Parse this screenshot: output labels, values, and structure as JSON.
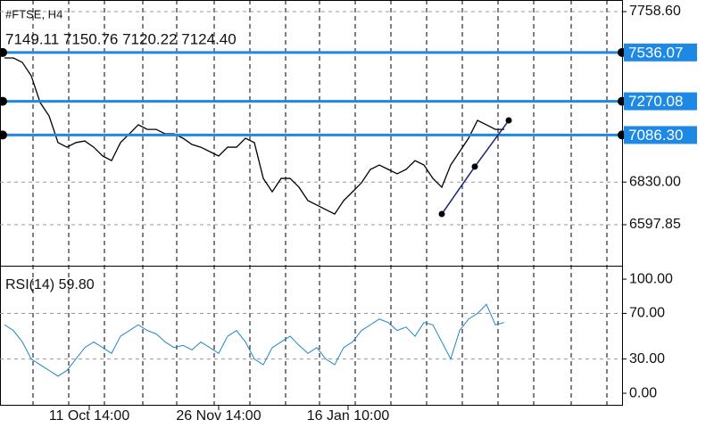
{
  "chart_data": {
    "type": "price",
    "symbol": "#FTSE, H4",
    "ohlc_text": "7149.11 7150.76 7120.22 7124.40",
    "close": [
      7506,
      7506,
      7482,
      7409,
      7263,
      7190,
      7045,
      7020,
      7045,
      7054,
      7020,
      6972,
      6947,
      7045,
      7093,
      7142,
      7117,
      7117,
      7093,
      7093,
      7069,
      7035,
      7020,
      6996,
      6972,
      7020,
      7020,
      7069,
      7045,
      6850,
      6777,
      6850,
      6850,
      6802,
      6729,
      6705,
      6680,
      6656,
      6729,
      6777,
      6826,
      6899,
      6923,
      6899,
      6875,
      6899,
      6947,
      6923,
      6850,
      6802,
      6923,
      6996,
      7069,
      7166,
      7142,
      7117,
      7117
    ],
    "xlim": [
      -0.5,
      69.2
    ],
    "xticks": [
      {
        "value": 9.5,
        "label": "11 Oct 14:00"
      },
      {
        "value": 24,
        "label": "26 Nov 14:00"
      },
      {
        "value": 38.5,
        "label": "16 Jan 10:00"
      }
    ],
    "ylim": [
      6379.3,
      7821.7
    ],
    "yticks": [
      {
        "value": 7758.6,
        "label": "7758.60"
      },
      {
        "value": 6830,
        "label": "6830.00"
      },
      {
        "value": 6597.85,
        "label": "6597.85"
      }
    ],
    "levels": [
      {
        "value": 7536.07,
        "label": "7536.07"
      },
      {
        "value": 7270.08,
        "label": "7270.08"
      },
      {
        "value": 7086.3,
        "label": "7086.30"
      }
    ],
    "level_color": "#1e88e5",
    "trendline": {
      "x": [
        49,
        52.7,
        56.5
      ],
      "y": [
        6656,
        6914,
        7166
      ],
      "color": "#1a237e"
    },
    "rsi": {
      "label": "RSI(14) 59.80",
      "color": "#1e88c8",
      "values": [
        60,
        55,
        45,
        30,
        25,
        20,
        15,
        20,
        30,
        40,
        45,
        40,
        35,
        50,
        55,
        60,
        55,
        52,
        45,
        40,
        42,
        38,
        45,
        40,
        35,
        50,
        55,
        45,
        30,
        25,
        40,
        45,
        50,
        42,
        35,
        40,
        30,
        25,
        40,
        45,
        55,
        60,
        65,
        62,
        55,
        58,
        50,
        62,
        60,
        45,
        30,
        55,
        65,
        70,
        78,
        60,
        62
      ],
      "ylim": [
        -10.9,
        110.2
      ],
      "yticks": [
        {
          "value": 100,
          "label": "100.00"
        },
        {
          "value": 70,
          "label": "70.00"
        },
        {
          "value": 30,
          "label": "30.00"
        },
        {
          "value": 0,
          "label": "0.00"
        }
      ]
    }
  }
}
